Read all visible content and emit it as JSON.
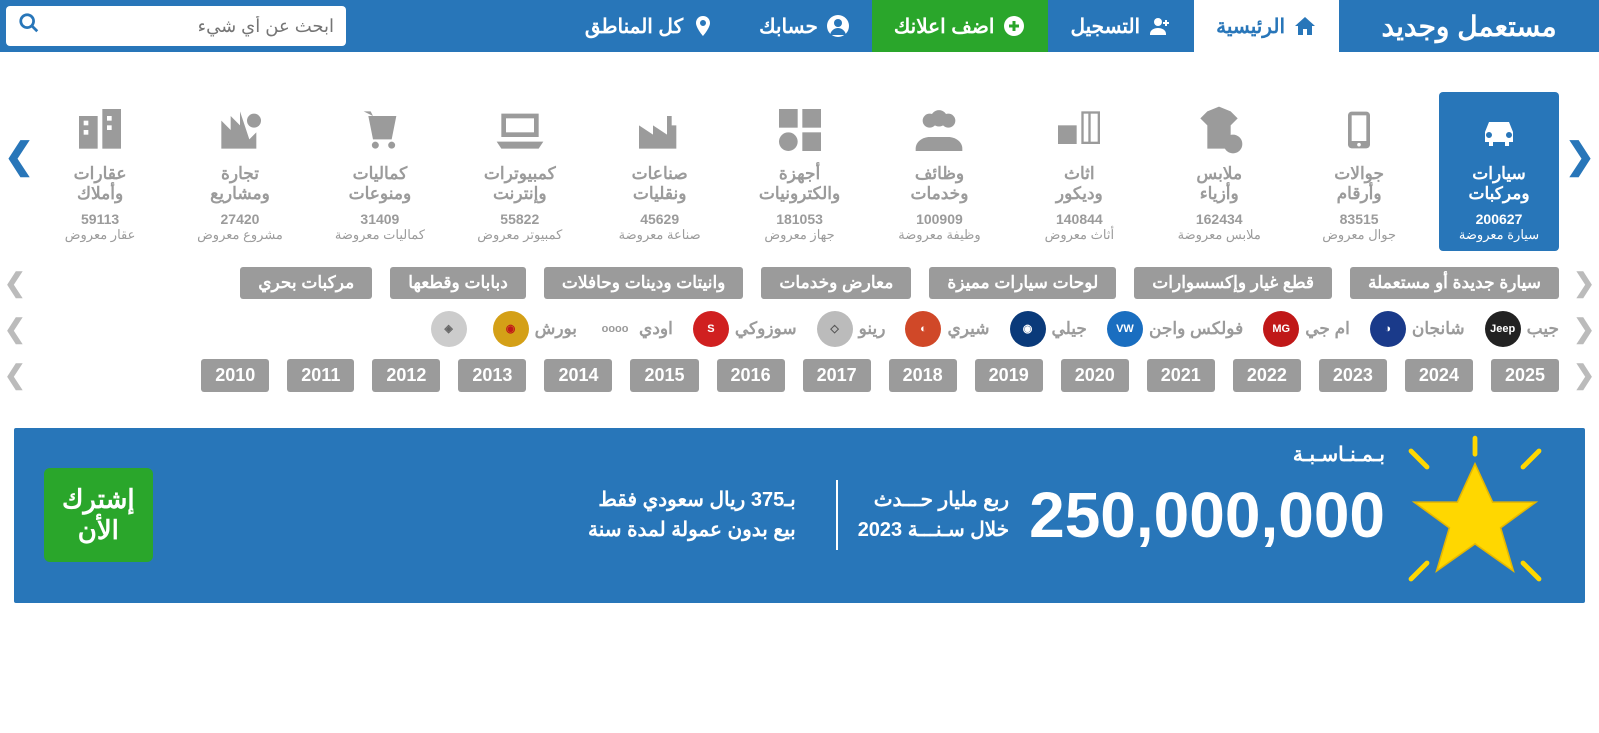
{
  "header": {
    "logo": "مستعمل وجديد",
    "home": "الرئيسية",
    "register": "التسجيل",
    "add": "اضف اعلانك",
    "account": "حسابك",
    "regions": "كل المناطق",
    "search_placeholder": "ابحث عن أي شيء"
  },
  "categories": [
    {
      "id": "cars",
      "title": "سيارات\nومركبات",
      "count": "200627",
      "unit": "سيارة معروضة",
      "active": true
    },
    {
      "id": "phones",
      "title": "جوالات\nوأرقام",
      "count": "83515",
      "unit": "جوال معروض"
    },
    {
      "id": "fashion",
      "title": "ملابس\nوأزياء",
      "count": "162434",
      "unit": "ملابس معروضة"
    },
    {
      "id": "furniture",
      "title": "اثاث\nوديكور",
      "count": "140844",
      "unit": "أثاث معروض"
    },
    {
      "id": "jobs",
      "title": "وظائف\nوخدمات",
      "count": "100909",
      "unit": "وظيفة معروضة"
    },
    {
      "id": "electronics",
      "title": "أجهزة\nوالكترونيات",
      "count": "181053",
      "unit": "جهاز معروض"
    },
    {
      "id": "industry",
      "title": "صناعات\nونقليات",
      "count": "45629",
      "unit": "صناعة معروضة"
    },
    {
      "id": "computers",
      "title": "كمبيوترات\nوإنترنت",
      "count": "55822",
      "unit": "كمبيوتر معروض"
    },
    {
      "id": "misc",
      "title": "كماليات\nومنوعات",
      "count": "31409",
      "unit": "كماليات معروضة"
    },
    {
      "id": "business",
      "title": "تجارة\nومشاريع",
      "count": "27420",
      "unit": "مشروع معروض"
    },
    {
      "id": "realestate",
      "title": "عقارات\nوأملاك",
      "count": "59113",
      "unit": "عقار معروض"
    }
  ],
  "subcats": [
    "سيارة جديدة أو مستعملة",
    "قطع غيار وإكسسوارات",
    "لوحات سيارات مميزة",
    "معارض وخدمات",
    "وانيتات ودينات وحافلات",
    "دبابات وقطعها",
    "مركبات بحري"
  ],
  "brands": [
    {
      "name": "جيب",
      "logo": "Jeep",
      "bg": "#222",
      "fg": "#fff"
    },
    {
      "name": "شانجان",
      "logo": "◑",
      "bg": "#1a3a8a",
      "fg": "#fff"
    },
    {
      "name": "ام جي",
      "logo": "MG",
      "bg": "#c01818",
      "fg": "#fff"
    },
    {
      "name": "فولكس واجن",
      "logo": "VW",
      "bg": "#1a6ec0",
      "fg": "#fff"
    },
    {
      "name": "جيلي",
      "logo": "◉",
      "bg": "#0a3a7a",
      "fg": "#fff"
    },
    {
      "name": "شيري",
      "logo": "◐",
      "bg": "#d04828",
      "fg": "#fff"
    },
    {
      "name": "رينو",
      "logo": "◇",
      "bg": "#bbb",
      "fg": "#555"
    },
    {
      "name": "سوزوكي",
      "logo": "S",
      "bg": "#d02020",
      "fg": "#fff"
    },
    {
      "name": "اودي",
      "logo": "oooo",
      "bg": "transparent",
      "fg": "#999"
    },
    {
      "name": "بورش",
      "logo": "◉",
      "bg": "#d4a017",
      "fg": "#c01818"
    },
    {
      "name": "",
      "logo": "◈",
      "bg": "#ccc",
      "fg": "#666"
    }
  ],
  "years": [
    "2025",
    "2024",
    "2023",
    "2022",
    "2021",
    "2020",
    "2019",
    "2018",
    "2017",
    "2016",
    "2015",
    "2014",
    "2013",
    "2012",
    "2011",
    "2010"
  ],
  "banner": {
    "occasion": "بـمـنـاسـبـة",
    "big": "250,000,000",
    "c1a": "ربع مليار حـــدث",
    "c1b": "خلال سـنـــة 2023",
    "c2a": "بـ375 ريال سعودي فقط",
    "c2b": "بيع بدون عمولة لمدة سنة",
    "btn1": "إشترك",
    "btn2": "الأن"
  },
  "colors": {
    "primary": "#2876b9",
    "green": "#2aa62b",
    "gray": "#9b9b9b"
  }
}
